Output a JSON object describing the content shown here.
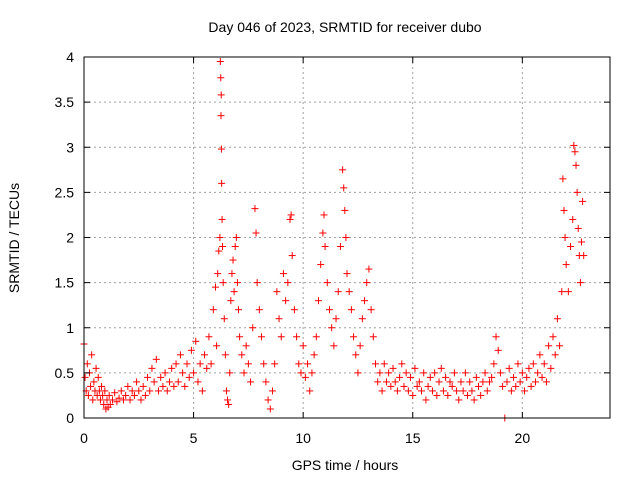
{
  "chart_data": {
    "type": "scatter",
    "title": "Day 046 of 2023, SRMTID for receiver dubo",
    "xlabel": "GPS time / hours",
    "ylabel": "SRMTID / TECUs",
    "xlim": [
      0,
      24
    ],
    "ylim": [
      0,
      4
    ],
    "x_ticks": [
      0,
      5,
      10,
      15,
      20
    ],
    "x_tick_labels": [
      "0",
      "5",
      "10",
      "15",
      "20"
    ],
    "y_ticks": [
      0,
      0.5,
      1,
      1.5,
      2,
      2.5,
      3,
      3.5,
      4
    ],
    "y_tick_labels": [
      "0",
      "0.5",
      "1",
      "1.5",
      "2",
      "2.5",
      "3",
      "3.5",
      "4"
    ],
    "grid": true,
    "marker": "+",
    "color": "#ff0000",
    "series": [
      {
        "name": "SRMTID",
        "points": [
          [
            0.0,
            0.82
          ],
          [
            0.05,
            0.45
          ],
          [
            0.1,
            0.3
          ],
          [
            0.15,
            0.6
          ],
          [
            0.2,
            0.25
          ],
          [
            0.25,
            0.5
          ],
          [
            0.3,
            0.35
          ],
          [
            0.35,
            0.7
          ],
          [
            0.4,
            0.2
          ],
          [
            0.45,
            0.4
          ],
          [
            0.5,
            0.3
          ],
          [
            0.55,
            0.55
          ],
          [
            0.6,
            0.25
          ],
          [
            0.65,
            0.45
          ],
          [
            0.7,
            0.3
          ],
          [
            0.75,
            0.2
          ],
          [
            0.8,
            0.35
          ],
          [
            0.85,
            0.25
          ],
          [
            0.9,
            0.15
          ],
          [
            0.95,
            0.3
          ],
          [
            1.0,
            0.1
          ],
          [
            1.05,
            0.2
          ],
          [
            1.1,
            0.12
          ],
          [
            1.15,
            0.25
          ],
          [
            1.2,
            0.15
          ],
          [
            1.3,
            0.2
          ],
          [
            1.4,
            0.28
          ],
          [
            1.5,
            0.18
          ],
          [
            1.6,
            0.22
          ],
          [
            1.7,
            0.3
          ],
          [
            1.8,
            0.2
          ],
          [
            1.9,
            0.25
          ],
          [
            2.0,
            0.35
          ],
          [
            2.1,
            0.2
          ],
          [
            2.2,
            0.3
          ],
          [
            2.3,
            0.25
          ],
          [
            2.4,
            0.4
          ],
          [
            2.5,
            0.3
          ],
          [
            2.6,
            0.2
          ],
          [
            2.7,
            0.35
          ],
          [
            2.8,
            0.25
          ],
          [
            2.9,
            0.45
          ],
          [
            3.0,
            0.3
          ],
          [
            3.1,
            0.55
          ],
          [
            3.2,
            0.4
          ],
          [
            3.3,
            0.65
          ],
          [
            3.4,
            0.3
          ],
          [
            3.5,
            0.45
          ],
          [
            3.6,
            0.35
          ],
          [
            3.7,
            0.5
          ],
          [
            3.8,
            0.3
          ],
          [
            3.9,
            0.4
          ],
          [
            4.0,
            0.55
          ],
          [
            4.1,
            0.35
          ],
          [
            4.2,
            0.6
          ],
          [
            4.3,
            0.4
          ],
          [
            4.4,
            0.7
          ],
          [
            4.5,
            0.5
          ],
          [
            4.6,
            0.35
          ],
          [
            4.7,
            0.6
          ],
          [
            4.8,
            0.45
          ],
          [
            4.9,
            0.75
          ],
          [
            5.0,
            0.5
          ],
          [
            5.1,
            0.85
          ],
          [
            5.2,
            0.4
          ],
          [
            5.3,
            0.6
          ],
          [
            5.4,
            0.3
          ],
          [
            5.5,
            0.7
          ],
          [
            5.6,
            0.55
          ],
          [
            5.7,
            0.9
          ],
          [
            5.8,
            0.6
          ],
          [
            5.9,
            1.2
          ],
          [
            6.0,
            1.45
          ],
          [
            6.05,
            0.8
          ],
          [
            6.1,
            1.6
          ],
          [
            6.15,
            1.85
          ],
          [
            6.2,
            2.0
          ],
          [
            6.22,
            3.95
          ],
          [
            6.24,
            3.77
          ],
          [
            6.25,
            3.35
          ],
          [
            6.26,
            3.58
          ],
          [
            6.27,
            2.98
          ],
          [
            6.28,
            2.6
          ],
          [
            6.3,
            2.2
          ],
          [
            6.32,
            1.9
          ],
          [
            6.35,
            1.5
          ],
          [
            6.4,
            1.1
          ],
          [
            6.45,
            0.7
          ],
          [
            6.5,
            0.3
          ],
          [
            6.55,
            0.2
          ],
          [
            6.6,
            0.15
          ],
          [
            6.65,
            0.5
          ],
          [
            6.7,
            1.3
          ],
          [
            6.75,
            1.6
          ],
          [
            6.8,
            1.75
          ],
          [
            6.85,
            1.4
          ],
          [
            6.9,
            1.9
          ],
          [
            6.95,
            2.0
          ],
          [
            7.0,
            1.5
          ],
          [
            7.05,
            1.2
          ],
          [
            7.1,
            0.9
          ],
          [
            7.2,
            0.7
          ],
          [
            7.3,
            0.5
          ],
          [
            7.4,
            0.8
          ],
          [
            7.5,
            0.6
          ],
          [
            7.6,
            0.4
          ],
          [
            7.7,
            1.0
          ],
          [
            7.8,
            2.32
          ],
          [
            7.85,
            2.05
          ],
          [
            7.9,
            1.5
          ],
          [
            8.0,
            1.2
          ],
          [
            8.1,
            0.9
          ],
          [
            8.2,
            0.6
          ],
          [
            8.3,
            0.4
          ],
          [
            8.4,
            0.2
          ],
          [
            8.5,
            0.1
          ],
          [
            8.6,
            0.3
          ],
          [
            8.7,
            0.6
          ],
          [
            8.8,
            1.4
          ],
          [
            8.9,
            1.1
          ],
          [
            9.0,
            0.9
          ],
          [
            9.1,
            1.6
          ],
          [
            9.2,
            1.3
          ],
          [
            9.3,
            1.5
          ],
          [
            9.4,
            2.2
          ],
          [
            9.45,
            2.25
          ],
          [
            9.5,
            1.8
          ],
          [
            9.6,
            1.2
          ],
          [
            9.7,
            0.9
          ],
          [
            9.8,
            0.6
          ],
          [
            9.9,
            0.5
          ],
          [
            10.0,
            0.8
          ],
          [
            10.1,
            0.45
          ],
          [
            10.2,
            0.6
          ],
          [
            10.3,
            0.3
          ],
          [
            10.4,
            0.5
          ],
          [
            10.5,
            0.7
          ],
          [
            10.6,
            0.9
          ],
          [
            10.7,
            1.3
          ],
          [
            10.8,
            1.7
          ],
          [
            10.9,
            2.05
          ],
          [
            10.95,
            2.25
          ],
          [
            11.0,
            1.9
          ],
          [
            11.1,
            1.5
          ],
          [
            11.2,
            1.2
          ],
          [
            11.3,
            1.0
          ],
          [
            11.4,
            0.8
          ],
          [
            11.5,
            1.1
          ],
          [
            11.6,
            1.4
          ],
          [
            11.7,
            1.9
          ],
          [
            11.8,
            2.75
          ],
          [
            11.85,
            2.55
          ],
          [
            11.9,
            2.3
          ],
          [
            11.95,
            2.0
          ],
          [
            12.0,
            1.6
          ],
          [
            12.1,
            1.4
          ],
          [
            12.2,
            1.2
          ],
          [
            12.3,
            0.9
          ],
          [
            12.4,
            0.7
          ],
          [
            12.5,
            0.5
          ],
          [
            12.6,
            0.8
          ],
          [
            12.7,
            1.1
          ],
          [
            12.8,
            1.3
          ],
          [
            12.9,
            1.5
          ],
          [
            13.0,
            1.65
          ],
          [
            13.1,
            1.2
          ],
          [
            13.2,
            0.9
          ],
          [
            13.3,
            0.6
          ],
          [
            13.4,
            0.4
          ],
          [
            13.5,
            0.5
          ],
          [
            13.6,
            0.3
          ],
          [
            13.7,
            0.6
          ],
          [
            13.8,
            0.4
          ],
          [
            13.9,
            0.5
          ],
          [
            14.0,
            0.35
          ],
          [
            14.1,
            0.55
          ],
          [
            14.2,
            0.4
          ],
          [
            14.3,
            0.3
          ],
          [
            14.4,
            0.45
          ],
          [
            14.5,
            0.6
          ],
          [
            14.6,
            0.35
          ],
          [
            14.7,
            0.5
          ],
          [
            14.8,
            0.3
          ],
          [
            14.9,
            0.45
          ],
          [
            15.0,
            0.25
          ],
          [
            15.1,
            0.55
          ],
          [
            15.2,
            0.35
          ],
          [
            15.3,
            0.4
          ],
          [
            15.4,
            0.3
          ],
          [
            15.5,
            0.5
          ],
          [
            15.6,
            0.2
          ],
          [
            15.7,
            0.35
          ],
          [
            15.8,
            0.45
          ],
          [
            15.9,
            0.3
          ],
          [
            16.0,
            0.5
          ],
          [
            16.1,
            0.25
          ],
          [
            16.2,
            0.4
          ],
          [
            16.3,
            0.55
          ],
          [
            16.4,
            0.3
          ],
          [
            16.5,
            0.45
          ],
          [
            16.6,
            0.25
          ],
          [
            16.7,
            0.4
          ],
          [
            16.8,
            0.35
          ],
          [
            16.9,
            0.5
          ],
          [
            17.0,
            0.3
          ],
          [
            17.1,
            0.2
          ],
          [
            17.2,
            0.4
          ],
          [
            17.3,
            0.3
          ],
          [
            17.4,
            0.5
          ],
          [
            17.5,
            0.25
          ],
          [
            17.6,
            0.4
          ],
          [
            17.7,
            0.3
          ],
          [
            17.8,
            0.2
          ],
          [
            17.9,
            0.45
          ],
          [
            18.0,
            0.35
          ],
          [
            18.1,
            0.25
          ],
          [
            18.2,
            0.4
          ],
          [
            18.3,
            0.5
          ],
          [
            18.4,
            0.3
          ],
          [
            18.5,
            0.4
          ],
          [
            18.6,
            0.45
          ],
          [
            18.7,
            0.6
          ],
          [
            18.8,
            0.9
          ],
          [
            18.9,
            0.75
          ],
          [
            19.0,
            0.5
          ],
          [
            19.1,
            0.35
          ],
          [
            19.2,
            0.0
          ],
          [
            19.3,
            0.4
          ],
          [
            19.4,
            0.55
          ],
          [
            19.5,
            0.3
          ],
          [
            19.6,
            0.45
          ],
          [
            19.7,
            0.35
          ],
          [
            19.8,
            0.6
          ],
          [
            19.9,
            0.4
          ],
          [
            20.0,
            0.5
          ],
          [
            20.1,
            0.3
          ],
          [
            20.2,
            0.45
          ],
          [
            20.3,
            0.55
          ],
          [
            20.4,
            0.35
          ],
          [
            20.5,
            0.6
          ],
          [
            20.6,
            0.4
          ],
          [
            20.7,
            0.5
          ],
          [
            20.8,
            0.7
          ],
          [
            20.9,
            0.45
          ],
          [
            21.0,
            0.6
          ],
          [
            21.1,
            0.4
          ],
          [
            21.2,
            0.8
          ],
          [
            21.3,
            0.55
          ],
          [
            21.4,
            0.9
          ],
          [
            21.5,
            0.7
          ],
          [
            21.6,
            1.1
          ],
          [
            21.7,
            0.8
          ],
          [
            21.8,
            1.4
          ],
          [
            21.85,
            2.65
          ],
          [
            21.9,
            2.3
          ],
          [
            21.95,
            2.0
          ],
          [
            22.0,
            1.7
          ],
          [
            22.1,
            1.4
          ],
          [
            22.2,
            1.9
          ],
          [
            22.3,
            2.2
          ],
          [
            22.35,
            3.02
          ],
          [
            22.4,
            2.95
          ],
          [
            22.45,
            2.8
          ],
          [
            22.5,
            2.5
          ],
          [
            22.55,
            2.1
          ],
          [
            22.6,
            1.8
          ],
          [
            22.65,
            1.5
          ],
          [
            22.7,
            1.95
          ],
          [
            22.75,
            2.4
          ],
          [
            22.8,
            1.8
          ]
        ]
      }
    ]
  }
}
